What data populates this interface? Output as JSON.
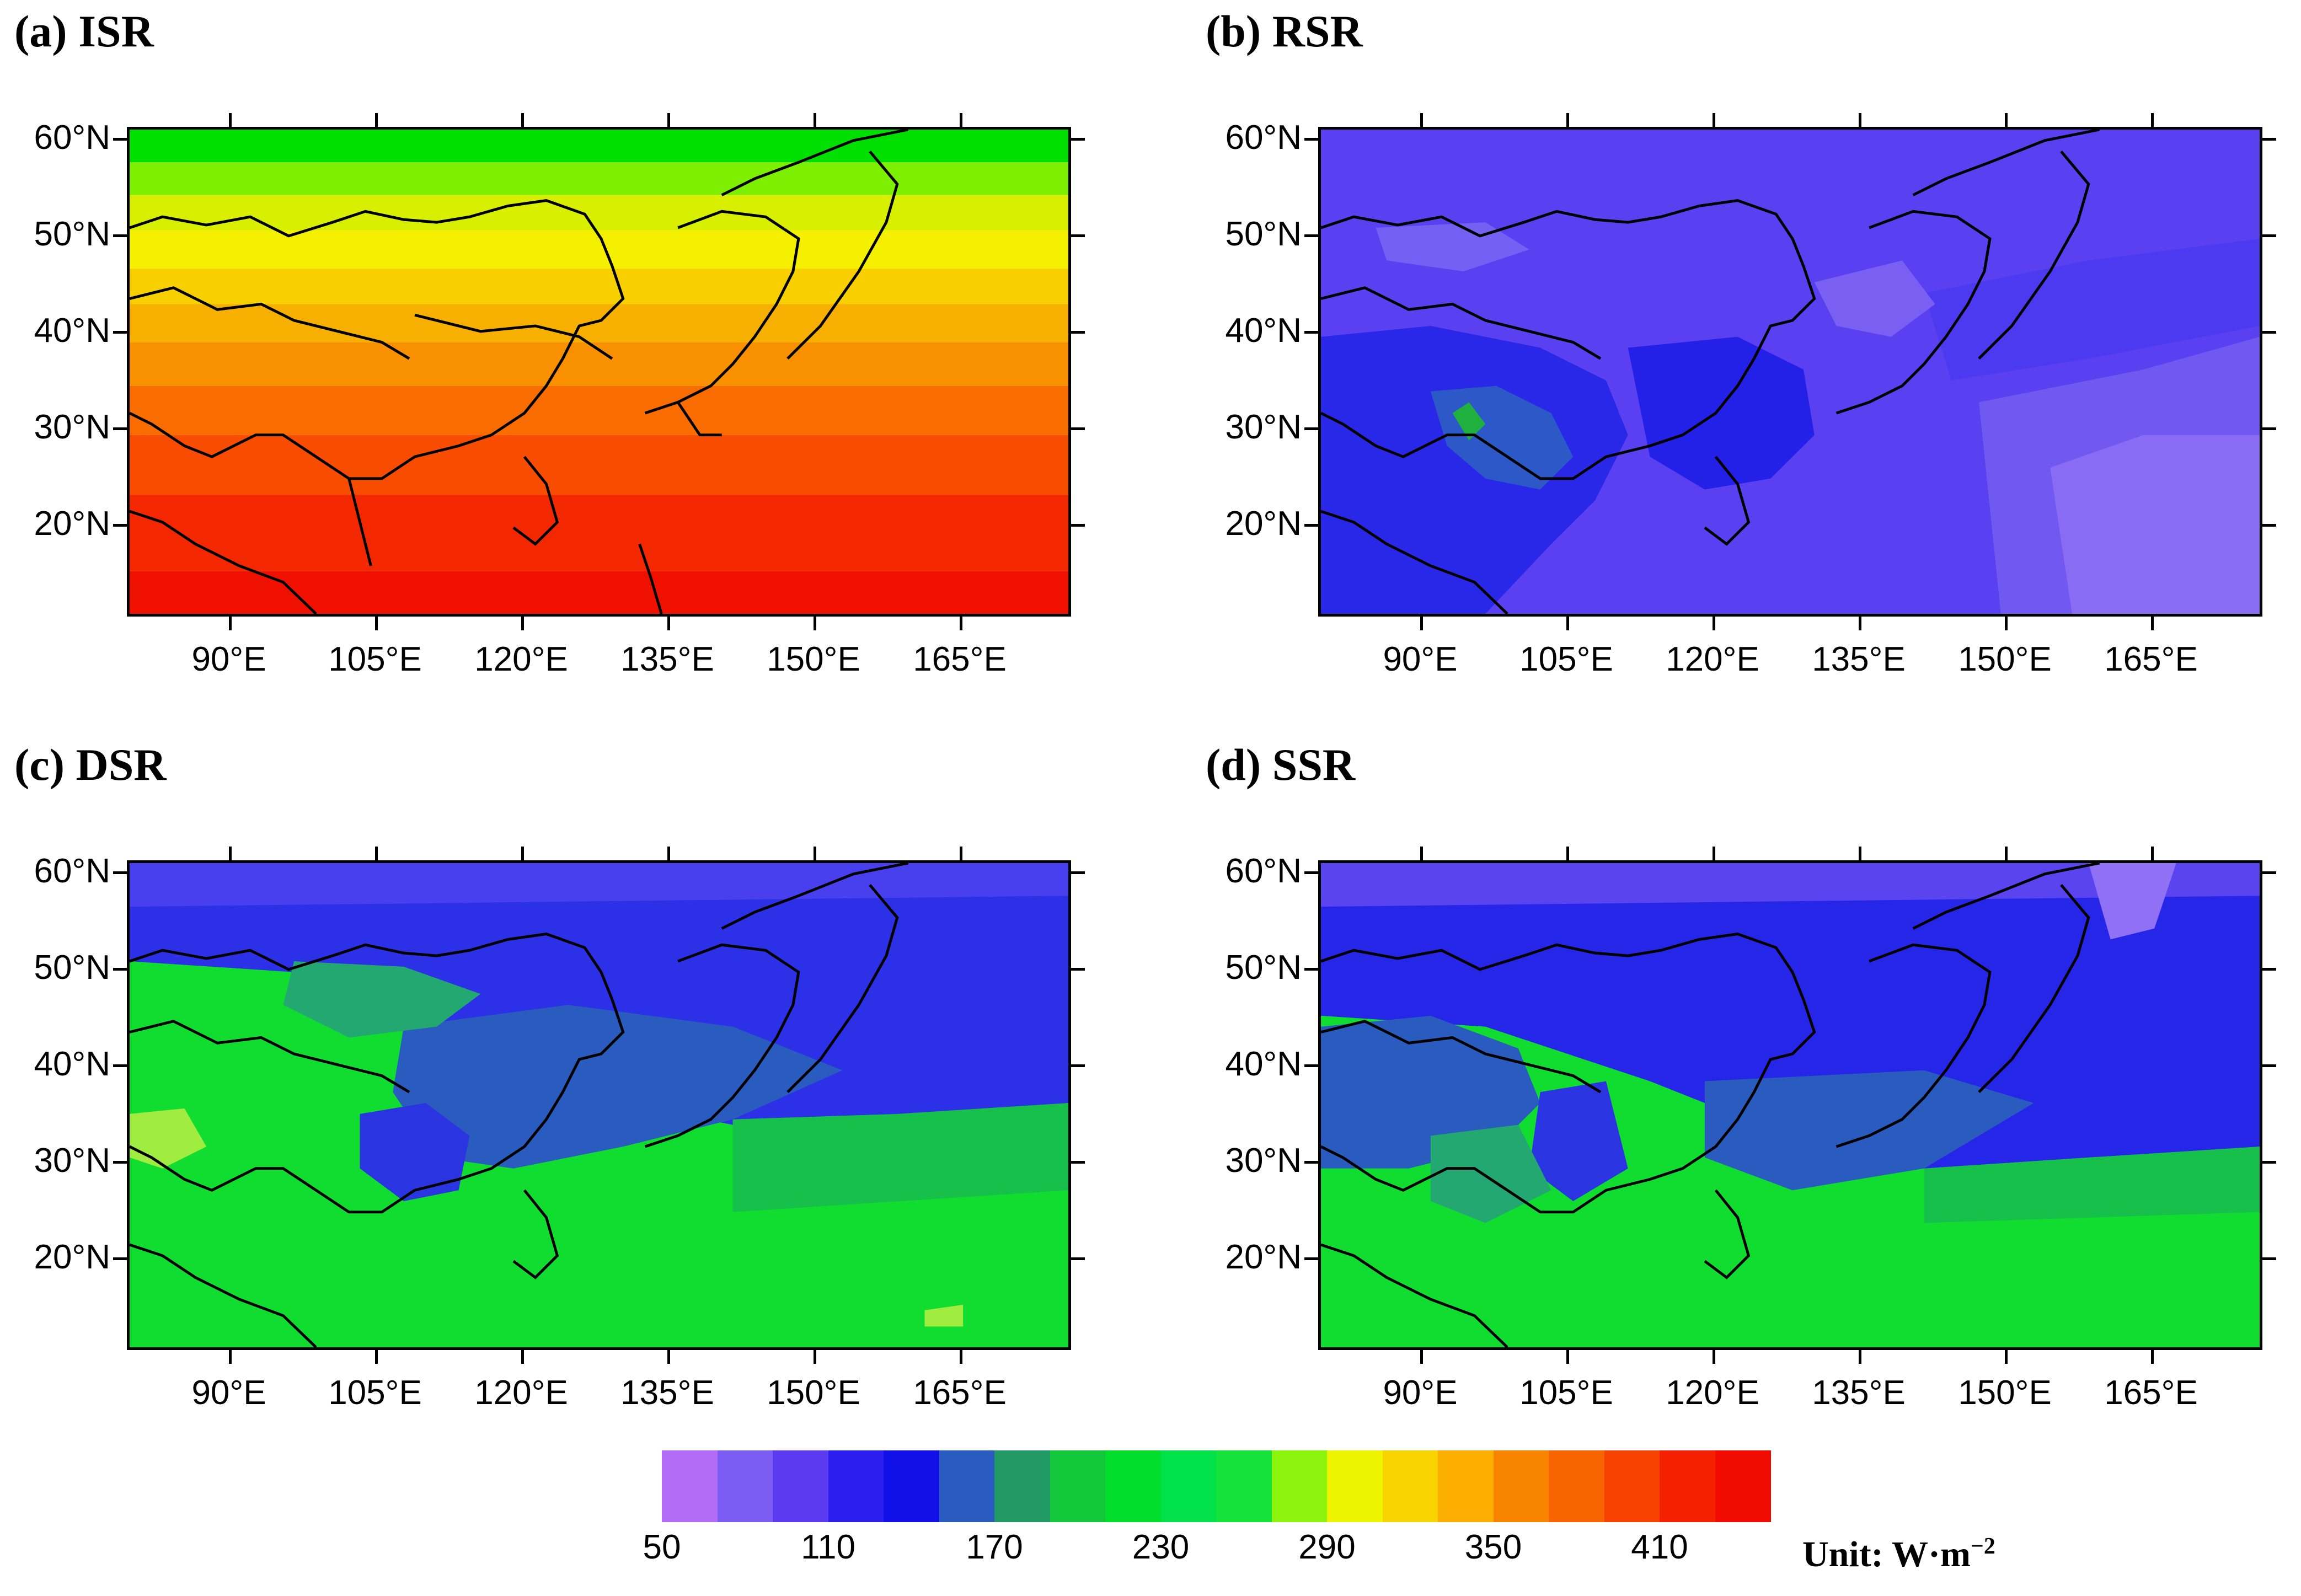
{
  "panels": [
    {
      "id": "a",
      "title": "(a) ISR"
    },
    {
      "id": "b",
      "title": "(b) RSR"
    },
    {
      "id": "c",
      "title": "(c) DSR"
    },
    {
      "id": "d",
      "title": "(d) SSR"
    }
  ],
  "lat_labels": [
    "60°N",
    "50°N",
    "40°N",
    "30°N",
    "20°N"
  ],
  "lon_labels": [
    "90°E",
    "105°E",
    "120°E",
    "135°E",
    "150°E",
    "165°E"
  ],
  "colorbar": {
    "colors": [
      "#b36cf5",
      "#7c5cf2",
      "#5b3bf0",
      "#2d1ef0",
      "#1210e8",
      "#2a5cc0",
      "#229a66",
      "#12c83a",
      "#00dd2a",
      "#00e14a",
      "#14e33c",
      "#8cf40c",
      "#eef400",
      "#f8d400",
      "#fbae00",
      "#f98400",
      "#f86400",
      "#f84200",
      "#f42000",
      "#f00a00"
    ],
    "tick_labels": [
      "50",
      "110",
      "170",
      "230",
      "290",
      "350",
      "410"
    ]
  },
  "unit": {
    "prefix": "Unit: W·m",
    "exponent": "−2"
  }
}
